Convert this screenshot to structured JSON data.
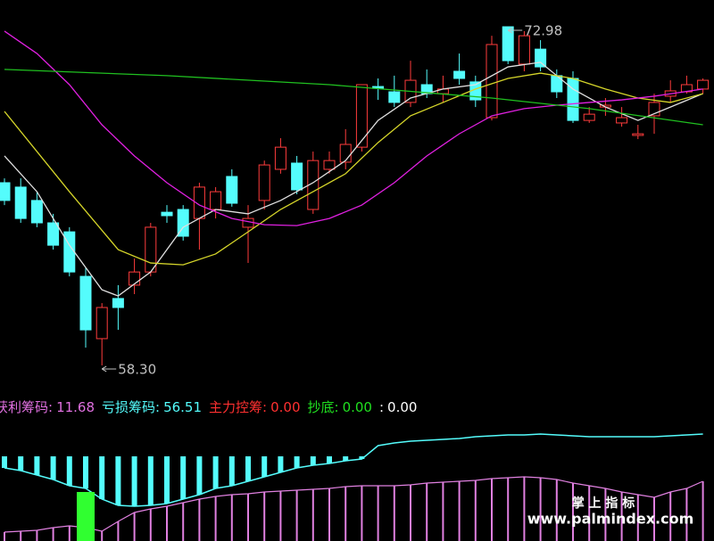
{
  "chart_data": [
    {
      "type": "candlestick",
      "ylim": [
        57.14,
        74.14
      ],
      "up_color": "#ff3c3c",
      "down_color": "#54fcfc",
      "open": [
        66.22,
        66.03,
        65.45,
        64.48,
        64.09,
        62.16,
        59.46,
        61.2,
        61.78,
        62.35,
        64.94,
        65.06,
        64.67,
        65.06,
        66.49,
        64.29,
        65.45,
        66.8,
        67.07,
        65.06,
        66.8,
        67.11,
        67.76,
        70.39,
        70.16,
        69.7,
        70.47,
        70.08,
        71.05,
        70.59,
        69.04,
        72.98,
        71.36,
        72.01,
        70.86,
        70.74,
        68.92,
        69.5,
        68.81,
        68.27,
        69.12,
        69.97,
        70.16,
        70.28
      ],
      "high": [
        66.41,
        66.41,
        65.83,
        64.87,
        64.29,
        62.55,
        61.0,
        61.78,
        62.93,
        64.48,
        65.25,
        65.25,
        66.22,
        66.03,
        66.8,
        65.25,
        67.18,
        68.15,
        67.38,
        67.57,
        67.57,
        68.54,
        70.47,
        70.74,
        70.86,
        71.51,
        71.13,
        70.86,
        71.82,
        70.86,
        72.59,
        72.98,
        72.79,
        72.4,
        71.13,
        71.05,
        69.5,
        69.89,
        69.5,
        68.73,
        70.08,
        70.66,
        70.86,
        70.74
      ],
      "low": [
        65.25,
        64.48,
        64.29,
        63.32,
        62.16,
        59.07,
        58.3,
        59.84,
        61.39,
        62.16,
        64.48,
        63.71,
        63.32,
        64.67,
        65.18,
        62.74,
        65.06,
        66.61,
        65.72,
        64.87,
        66.61,
        66.8,
        67.57,
        69.81,
        69.5,
        69.5,
        69.89,
        69.7,
        70.47,
        69.5,
        68.92,
        71.36,
        71.05,
        71.05,
        69.89,
        68.81,
        68.81,
        69.12,
        68.65,
        68.11,
        68.34,
        69.7,
        70.08,
        70.08
      ],
      "close": [
        65.45,
        64.67,
        64.48,
        63.51,
        62.35,
        59.84,
        60.81,
        60.81,
        62.35,
        64.29,
        64.79,
        63.9,
        66.03,
        65.83,
        65.33,
        64.67,
        66.99,
        67.76,
        65.91,
        67.18,
        67.18,
        67.88,
        70.47,
        70.31,
        69.7,
        70.66,
        70.08,
        70.28,
        70.74,
        69.81,
        72.21,
        71.51,
        72.59,
        71.24,
        70.16,
        68.92,
        69.19,
        69.58,
        69.04,
        68.34,
        69.7,
        70.2,
        70.47,
        70.66
      ],
      "lines": [
        {
          "color": "#e0e0e0",
          "x": [
            0,
            2,
            4,
            6,
            7,
            9,
            11,
            13,
            15,
            17,
            19,
            21,
            23,
            25,
            27,
            29,
            31,
            33,
            35,
            37,
            39,
            41,
            43
          ],
          "values": [
            67.38,
            65.83,
            63.51,
            61.58,
            61.31,
            62.35,
            64.29,
            65.06,
            64.87,
            65.45,
            66.22,
            67.18,
            68.92,
            69.89,
            70.28,
            70.47,
            71.24,
            71.44,
            70.28,
            69.5,
            68.92,
            69.5,
            70.08
          ]
        },
        {
          "color": "#d6d62a",
          "x": [
            0,
            4,
            7,
            9,
            11,
            13,
            15,
            17,
            19,
            21,
            23,
            25,
            27,
            29,
            31,
            33,
            35,
            37,
            39,
            41,
            43
          ],
          "values": [
            69.31,
            65.83,
            63.32,
            62.74,
            62.66,
            63.13,
            64.09,
            65.06,
            65.83,
            66.61,
            67.96,
            69.12,
            69.7,
            70.28,
            70.74,
            70.97,
            70.74,
            70.28,
            69.89,
            69.7,
            70.08
          ]
        },
        {
          "color": "#e020e0",
          "x": [
            0,
            2,
            4,
            6,
            8,
            10,
            12,
            14,
            16,
            18,
            20,
            22,
            24,
            26,
            28,
            30,
            32,
            34,
            36,
            38,
            40,
            43
          ],
          "values": [
            72.79,
            71.82,
            70.47,
            68.73,
            67.38,
            66.22,
            65.25,
            64.67,
            64.4,
            64.36,
            64.67,
            65.25,
            66.22,
            67.38,
            68.34,
            69.12,
            69.43,
            69.58,
            69.7,
            69.81,
            69.97,
            70.28
          ]
        },
        {
          "color": "#20c020",
          "x": [
            0,
            10,
            20,
            30,
            36,
            43
          ],
          "values": [
            71.13,
            70.86,
            70.47,
            69.89,
            69.43,
            68.73
          ]
        }
      ],
      "annotations": [
        {
          "index": 6,
          "value": 58.3,
          "label": "58.30"
        },
        {
          "index": 31,
          "value": 72.98,
          "label": "72.98"
        }
      ]
    },
    {
      "type": "indicator",
      "ylim": [
        0,
        100
      ],
      "readouts": [
        {
          "name": "获利筹码:",
          "text": "11.68",
          "color": "#e070e0"
        },
        {
          "name": "亏损筹码:",
          "text": "56.51",
          "color": "#54fcfc"
        },
        {
          "name": "主力控筹:",
          "text": "0.00",
          "color": "#ff3030"
        },
        {
          "name": "抄底:",
          "text": "0.00",
          "color": "#20e020"
        },
        {
          "name": ":",
          "text": "0.00",
          "color": "#ffffff"
        }
      ],
      "loss": {
        "color": "#54fcfc",
        "values": [
          75,
          72,
          67,
          62,
          55,
          52,
          40,
          33,
          32,
          33,
          35,
          40,
          45,
          52,
          55,
          60,
          65,
          70,
          75,
          78,
          80,
          83,
          85,
          100,
          103,
          105,
          106,
          107,
          108,
          110,
          111,
          112,
          112,
          113,
          112,
          111,
          110,
          110,
          110,
          110,
          110,
          111,
          112,
          113
        ]
      },
      "profit": {
        "color": "#e080e0",
        "values": [
          3,
          4,
          5,
          8,
          10,
          8,
          4,
          15,
          25,
          29,
          32,
          36,
          40,
          43,
          45,
          46,
          48,
          49,
          50,
          51,
          52,
          54,
          55,
          55,
          55,
          56,
          58,
          59,
          60,
          61,
          63,
          64,
          65,
          64,
          62,
          58,
          55,
          52,
          48,
          45,
          42,
          48,
          52,
          60
        ]
      },
      "bottom": {
        "color": "#30ff30",
        "values": [
          null,
          null,
          null,
          null,
          null,
          48,
          null,
          null,
          null,
          null,
          null,
          null,
          null,
          null,
          null,
          null,
          null,
          null,
          null,
          null,
          null,
          null,
          null,
          null,
          null,
          null,
          null,
          null,
          null,
          null,
          null,
          null,
          null,
          null,
          null,
          null,
          null,
          null,
          null,
          null,
          null,
          null,
          null,
          null
        ]
      }
    }
  ],
  "watermark": {
    "title": "掌 上 指 标",
    "url": "www.palmindex.com"
  }
}
